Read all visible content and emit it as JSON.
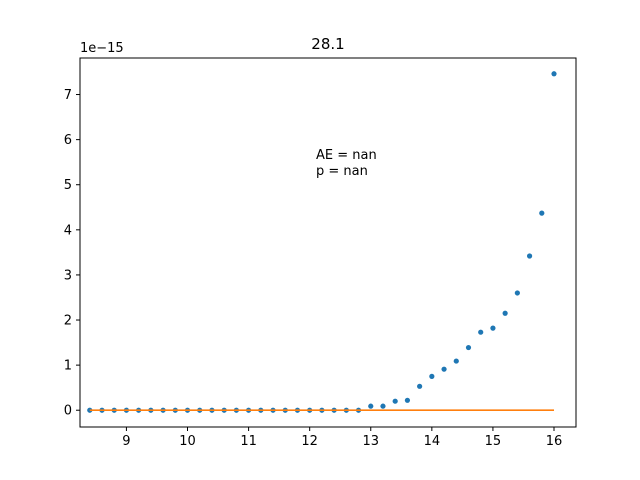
{
  "chart_data": {
    "type": "scatter",
    "title": "28.1",
    "xlabel": "",
    "ylabel": "",
    "y_offset_label": "1e−15",
    "xlim": [
      8.24,
      16.36
    ],
    "ylim": [
      -0.372,
      7.81
    ],
    "x_ticks": [
      9,
      10,
      11,
      12,
      13,
      14,
      15,
      16
    ],
    "y_ticks": [
      0,
      1,
      2,
      3,
      4,
      5,
      6,
      7
    ],
    "grid": false,
    "annotations": [
      "AE = nan",
      "p = nan"
    ],
    "series": [
      {
        "kind": "points",
        "color": "#1f77b4",
        "x": [
          8.4,
          8.6,
          8.8,
          9.0,
          9.2,
          9.4,
          9.6,
          9.8,
          10.0,
          10.2,
          10.4,
          10.6,
          10.8,
          11.0,
          11.2,
          11.4,
          11.6,
          11.8,
          12.0,
          12.2,
          12.4,
          12.6,
          12.8,
          13.0,
          13.2,
          13.4,
          13.6,
          13.8,
          14.0,
          14.2,
          14.4,
          14.6,
          14.8,
          15.0,
          15.2,
          15.4,
          15.6,
          15.8,
          16.0
        ],
        "y": [
          0,
          0,
          0,
          0,
          0,
          0,
          0,
          0,
          0,
          0,
          0,
          0,
          0,
          0,
          0,
          0,
          0,
          0,
          0,
          0,
          0,
          0,
          0,
          0.09,
          0.09,
          0.2,
          0.22,
          0.53,
          0.75,
          0.91,
          1.09,
          1.39,
          1.73,
          1.82,
          2.15,
          2.6,
          3.42,
          4.37,
          7.46
        ]
      },
      {
        "kind": "line",
        "color": "#ff7f0e",
        "x": [
          8.4,
          16.0
        ],
        "y": [
          0,
          0
        ]
      }
    ]
  }
}
